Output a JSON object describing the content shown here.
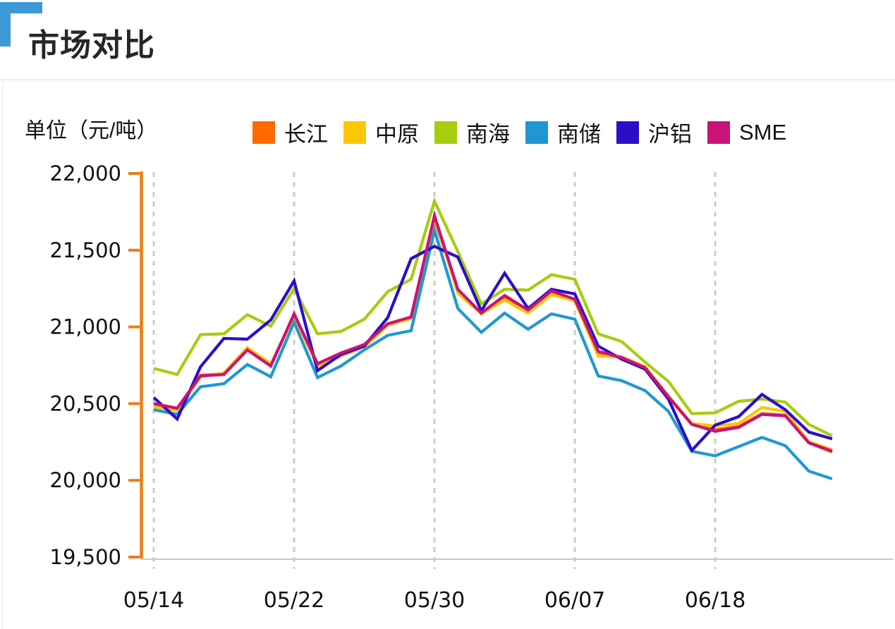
{
  "header": {
    "title": "市场对比"
  },
  "chart_data": {
    "type": "line",
    "title": "市场对比",
    "unit_label": "单位（元/吨）",
    "legend_position": "top",
    "grid": "vertical-dashed",
    "axis_color": "#ED7D15",
    "gridline_color": "#CCCCCC",
    "baseline_color": "#C9C9C9",
    "text_color": "#111111",
    "x_tick_labels": [
      "05/14",
      "05/22",
      "05/30",
      "06/07",
      "06/18"
    ],
    "x_tick_indices": [
      0,
      6,
      12,
      18,
      24
    ],
    "n_points": 30,
    "ylim": [
      19500,
      22000
    ],
    "y_ticks": [
      22000,
      21500,
      21000,
      20500,
      20000,
      19500
    ],
    "y_tick_labels": [
      "22,000",
      "21,500",
      "21,000",
      "20,500",
      "20,000",
      "19,500"
    ],
    "series": [
      {
        "key": "changjiang",
        "label": "长江",
        "color": "#FF6A00",
        "values": [
          20490,
          20465,
          20685,
          20695,
          20855,
          20750,
          21075,
          20755,
          20825,
          20880,
          21015,
          21060,
          21700,
          21235,
          21090,
          21190,
          21100,
          21225,
          21175,
          20825,
          20800,
          20735,
          20545,
          20365,
          20330,
          20350,
          20435,
          20425,
          20245,
          20185
        ]
      },
      {
        "key": "zhongyuan",
        "label": "中原",
        "color": "#FBC603",
        "values": [
          20480,
          20455,
          20675,
          20700,
          20865,
          20760,
          21070,
          20745,
          20810,
          20870,
          21010,
          21055,
          21715,
          21220,
          21085,
          21175,
          21090,
          21210,
          21170,
          20810,
          20805,
          20740,
          20550,
          20370,
          20355,
          20370,
          20475,
          20450,
          20250,
          20200
        ]
      },
      {
        "key": "nanhai",
        "label": "南海",
        "color": "#A8CC0E",
        "values": [
          20730,
          20690,
          20950,
          20955,
          21080,
          21005,
          21250,
          20955,
          20970,
          21050,
          21230,
          21310,
          21820,
          21490,
          21150,
          21245,
          21240,
          21340,
          21310,
          20955,
          20905,
          20770,
          20645,
          20435,
          20440,
          20515,
          20530,
          20510,
          20365,
          20290
        ]
      },
      {
        "key": "nanchu",
        "label": "南储",
        "color": "#2097D3",
        "values": [
          20460,
          20430,
          20610,
          20630,
          20755,
          20675,
          21030,
          20670,
          20745,
          20850,
          20945,
          20975,
          21630,
          21120,
          20965,
          21090,
          20985,
          21085,
          21050,
          20680,
          20650,
          20585,
          20450,
          20190,
          20160,
          20220,
          20280,
          20225,
          20060,
          20010
        ]
      },
      {
        "key": "hulv",
        "label": "沪铝",
        "color": "#2D0EC8",
        "values": [
          20540,
          20400,
          20740,
          20925,
          20920,
          21045,
          21300,
          20715,
          20820,
          20875,
          21060,
          21445,
          21525,
          21455,
          21105,
          21350,
          21120,
          21245,
          21215,
          20875,
          20790,
          20725,
          20530,
          20195,
          20360,
          20415,
          20560,
          20460,
          20315,
          20270
        ]
      },
      {
        "key": "sme",
        "label": "SME",
        "color": "#C91377",
        "values": [
          20500,
          20470,
          20680,
          20690,
          20850,
          20745,
          21085,
          20760,
          20830,
          20885,
          21020,
          21065,
          21725,
          21245,
          21090,
          21205,
          21110,
          21235,
          21180,
          20840,
          20800,
          20735,
          20545,
          20365,
          20320,
          20345,
          20430,
          20420,
          20245,
          20190
        ]
      }
    ]
  }
}
